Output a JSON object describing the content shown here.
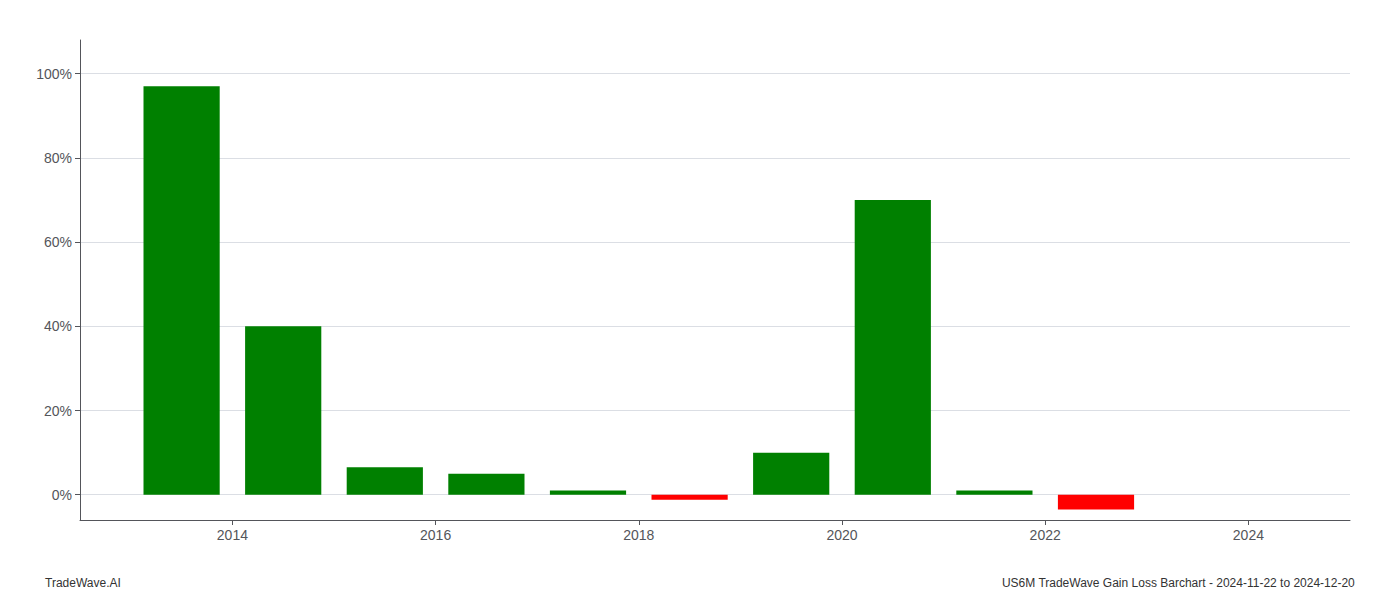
{
  "chart_data": {
    "type": "bar",
    "x": [
      2013.5,
      2014.5,
      2015.5,
      2016.5,
      2017.5,
      2018.5,
      2019.5,
      2020.5,
      2021.5,
      2022.5,
      2023.5
    ],
    "values": [
      0.97,
      0.4,
      0.065,
      0.05,
      0.01,
      -0.012,
      0.1,
      0.7,
      0.01,
      -0.035,
      0.0
    ],
    "colors": [
      "#008000",
      "#008000",
      "#008000",
      "#008000",
      "#008000",
      "#ff0000",
      "#008000",
      "#008000",
      "#008000",
      "#ff0000",
      "#008000"
    ],
    "xlim": [
      2012.5,
      2025.0
    ],
    "xticks": [
      2014,
      2016,
      2018,
      2020,
      2022,
      2024
    ],
    "ylim": [
      -0.06,
      1.08
    ],
    "yticks": [
      {
        "value": 0.0,
        "label": "0%"
      },
      {
        "value": 0.2,
        "label": "20%"
      },
      {
        "value": 0.4,
        "label": "40%"
      },
      {
        "value": 0.6,
        "label": "60%"
      },
      {
        "value": 0.8,
        "label": "80%"
      },
      {
        "value": 1.0,
        "label": "100%"
      }
    ],
    "grid": true,
    "annotations": [
      "TradeWave.AI",
      "US6M TradeWave Gain Loss Barchart - 2024-11-22 to 2024-12-20"
    ]
  }
}
